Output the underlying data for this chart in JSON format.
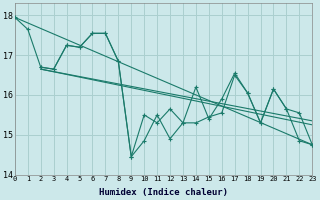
{
  "background_color": "#cce8ea",
  "grid_color": "#aacfcf",
  "line_color": "#1a7a6a",
  "xlabel": "Humidex (Indice chaleur)",
  "xlim": [
    0,
    23
  ],
  "ylim": [
    14,
    18.3
  ],
  "yticks": [
    14,
    15,
    16,
    17,
    18
  ],
  "xticks": [
    0,
    1,
    2,
    3,
    4,
    5,
    6,
    7,
    8,
    9,
    10,
    11,
    12,
    13,
    14,
    15,
    16,
    17,
    18,
    19,
    20,
    21,
    22,
    23
  ],
  "series": [
    {
      "x": [
        0,
        1,
        2,
        3,
        4,
        5,
        6,
        7,
        8,
        9,
        10,
        11,
        12,
        13,
        14,
        15,
        16,
        17,
        18,
        19,
        20,
        21,
        22,
        23
      ],
      "y": [
        17.95,
        17.65,
        16.7,
        16.65,
        17.25,
        17.2,
        17.55,
        17.55,
        16.85,
        14.45,
        14.85,
        15.5,
        14.9,
        15.3,
        15.3,
        15.45,
        15.55,
        16.5,
        16.05,
        15.3,
        16.15,
        15.65,
        14.85,
        14.75
      ],
      "style": "solid",
      "marker": true
    },
    {
      "x": [
        2,
        3,
        4,
        5,
        6,
        7,
        8,
        9,
        10,
        11,
        12,
        13,
        14,
        15,
        16,
        17,
        18,
        19,
        20,
        21,
        22,
        23
      ],
      "y": [
        16.7,
        16.65,
        17.25,
        17.2,
        17.55,
        17.55,
        16.85,
        14.45,
        15.5,
        15.3,
        15.65,
        15.3,
        16.2,
        15.4,
        15.9,
        16.55,
        16.05,
        15.3,
        16.15,
        15.65,
        15.55,
        14.75
      ],
      "style": "solid",
      "marker": true
    },
    {
      "x": [
        0,
        23
      ],
      "y": [
        17.95,
        14.75
      ],
      "style": "solid",
      "marker": false
    },
    {
      "x": [
        2,
        23
      ],
      "y": [
        16.65,
        15.25
      ],
      "style": "solid",
      "marker": false
    },
    {
      "x": [
        2,
        23
      ],
      "y": [
        16.65,
        15.35
      ],
      "style": "solid",
      "marker": false
    }
  ]
}
